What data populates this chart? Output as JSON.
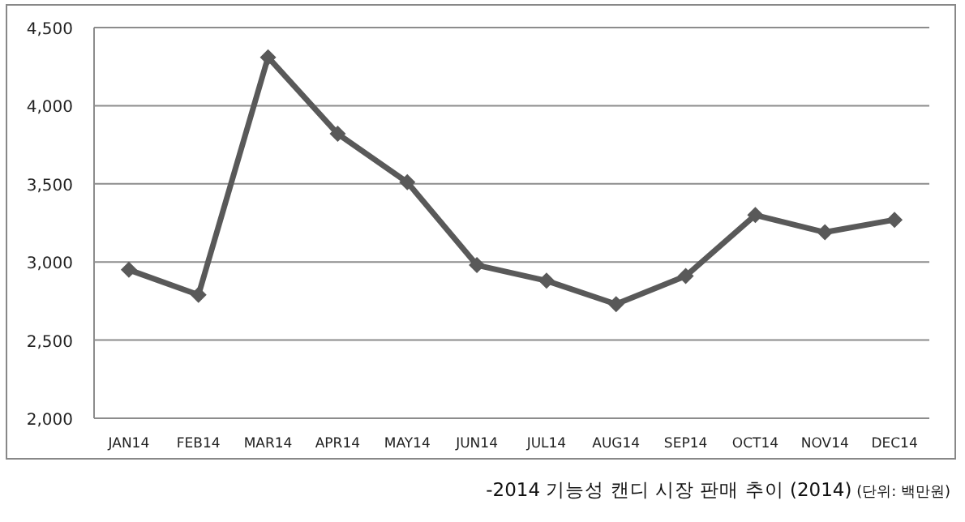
{
  "chart_data": {
    "type": "line",
    "categories": [
      "JAN14",
      "FEB14",
      "MAR14",
      "APR14",
      "MAY14",
      "JUN14",
      "JUL14",
      "AUG14",
      "SEP14",
      "OCT14",
      "NOV14",
      "DEC14"
    ],
    "series": [
      {
        "color": "#595959",
        "values": [
          2950,
          2790,
          4310,
          3820,
          3510,
          2980,
          2880,
          2730,
          2910,
          3300,
          3190,
          3270
        ]
      }
    ],
    "ylim": [
      2000,
      4500
    ],
    "yticks": [
      {
        "value": 2000,
        "label": "2,000"
      },
      {
        "value": 2500,
        "label": "2,500"
      },
      {
        "value": 3000,
        "label": "3,000"
      },
      {
        "value": 3500,
        "label": "3,500"
      },
      {
        "value": 4000,
        "label": "4,000"
      },
      {
        "value": 4500,
        "label": "4,500"
      }
    ],
    "grid": "y",
    "marker": "diamond",
    "line_style": "solid",
    "annotations": [
      "-2014 기능성 캔디 시장 판매 추이 (2014)",
      "(단위: 백만원)"
    ]
  }
}
